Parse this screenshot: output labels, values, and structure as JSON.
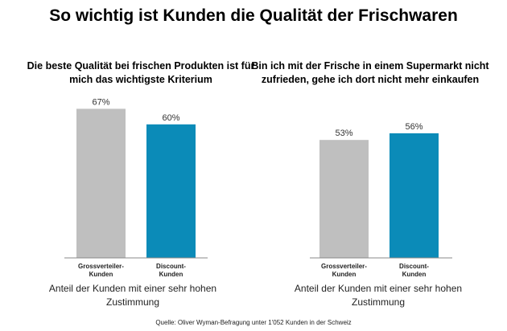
{
  "title": "So wichtig ist Kunden die Qualität der Frischwaren",
  "colors": {
    "grey": "#bfbfbf",
    "blue": "#0b8bb8",
    "axis": "#888888"
  },
  "chart_data": [
    {
      "type": "bar",
      "title": "Die beste Qualität bei frischen Produkten ist für mich das wichtigste Kriterium",
      "categories": [
        [
          "Grossverteiler-",
          "Kunden"
        ],
        [
          "Discount-",
          "Kunden"
        ]
      ],
      "values": [
        67,
        60
      ],
      "value_labels": [
        "67%",
        "60%"
      ],
      "bar_colors": [
        "#bfbfbf",
        "#0b8bb8"
      ],
      "xlabel": "Anteil der Kunden mit einer sehr hohen Zustimmung",
      "ylim": [
        0,
        100
      ],
      "grid": false
    },
    {
      "type": "bar",
      "title": "Bin ich mit der Frische in einem Supermarkt nicht zufrieden, gehe ich dort nicht mehr einkaufen",
      "categories": [
        [
          "Grossverteiler-",
          "Kunden"
        ],
        [
          "Discount-",
          "Kunden"
        ]
      ],
      "values": [
        53,
        56
      ],
      "value_labels": [
        "53%",
        "56%"
      ],
      "bar_colors": [
        "#bfbfbf",
        "#0b8bb8"
      ],
      "xlabel": "Anteil der Kunden mit einer sehr hohen Zustimmung",
      "ylim": [
        0,
        100
      ],
      "grid": false
    }
  ],
  "source": "Quelle: Oliver Wyman-Befragung unter 1'052 Kunden in der Schweiz"
}
